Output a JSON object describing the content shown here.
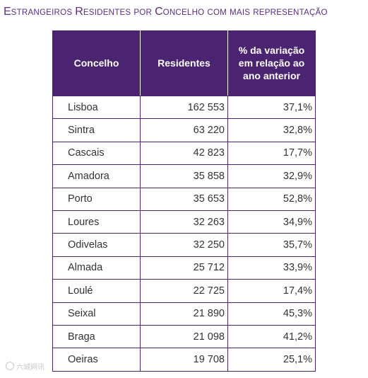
{
  "title": {
    "words": [
      {
        "first": "E",
        "rest": "STRANGEIROS"
      },
      {
        "first": "R",
        "rest": "ESIDENTES"
      },
      {
        "first": "",
        "rest": "POR"
      },
      {
        "first": "C",
        "rest": "ONCELHO"
      },
      {
        "first": "",
        "rest": "COM"
      },
      {
        "first": "",
        "rest": "MAIS"
      },
      {
        "first": "",
        "rest": "REPRESENTAÇÃO"
      }
    ],
    "color": "#5b2d82"
  },
  "table": {
    "header_color": "#4a2470",
    "headers": {
      "col1": "Concelho",
      "col2": "Residentes",
      "col3_line1": "% da variação",
      "col3_line2": "em relação ao",
      "col3_line3": "ano anterior"
    },
    "rows": [
      {
        "concelho": "Lisboa",
        "residentes": "162 553",
        "variacao": "37,1%"
      },
      {
        "concelho": "Sintra",
        "residentes": "63 220",
        "variacao": "32,8%"
      },
      {
        "concelho": "Cascais",
        "residentes": "42 823",
        "variacao": "17,7%"
      },
      {
        "concelho": "Amadora",
        "residentes": "35 858",
        "variacao": "32,9%"
      },
      {
        "concelho": "Porto",
        "residentes": "35 653",
        "variacao": "52,8%"
      },
      {
        "concelho": "Loures",
        "residentes": "32 263",
        "variacao": "34,9%"
      },
      {
        "concelho": "Odivelas",
        "residentes": "32 250",
        "variacao": "35,7%"
      },
      {
        "concelho": "Almada",
        "residentes": "25 712",
        "variacao": "33,9%"
      },
      {
        "concelho": "Loulé",
        "residentes": "22 725",
        "variacao": "17,4%"
      },
      {
        "concelho": "Seixal",
        "residentes": "21 890",
        "variacao": "45,3%"
      },
      {
        "concelho": "Braga",
        "residentes": "21 098",
        "variacao": "41,2%"
      },
      {
        "concelho": "Oeiras",
        "residentes": "19 708",
        "variacao": "25,1%"
      }
    ]
  },
  "watermark": {
    "text": "六城网讯"
  }
}
